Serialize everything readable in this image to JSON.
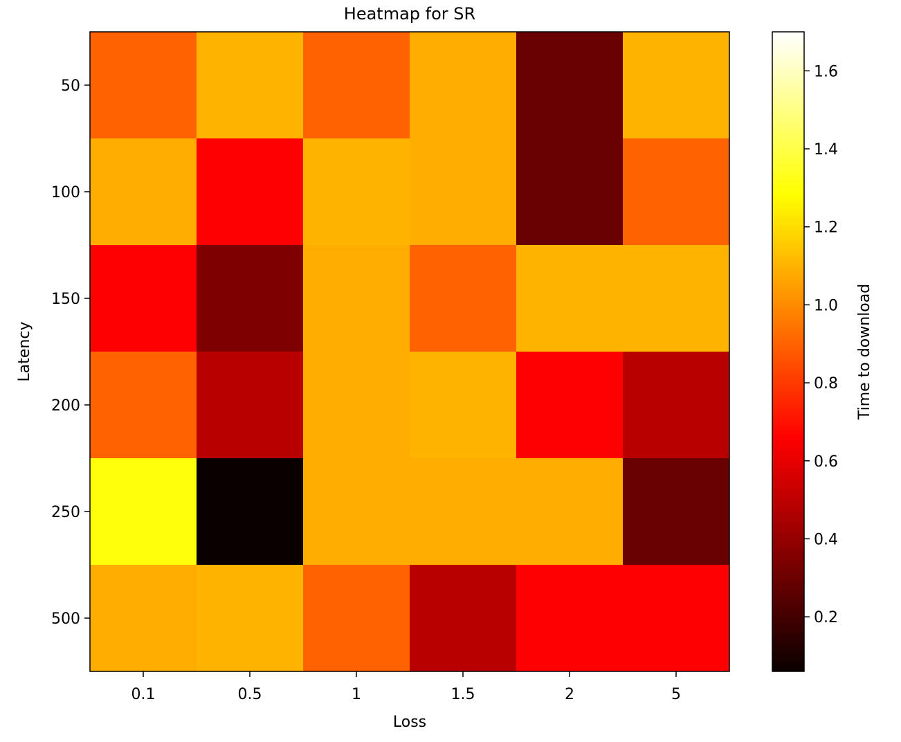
{
  "chart_data": {
    "type": "heatmap",
    "title": "Heatmap for SR",
    "xlabel": "Loss",
    "ylabel": "Latency",
    "x_categories": [
      "0.1",
      "0.5",
      "1",
      "1.5",
      "2",
      "5"
    ],
    "y_categories": [
      "50",
      "100",
      "150",
      "200",
      "250",
      "500"
    ],
    "values": [
      [
        0.9,
        1.1,
        0.9,
        1.08,
        0.28,
        1.1
      ],
      [
        1.08,
        0.65,
        1.1,
        1.08,
        0.28,
        0.9
      ],
      [
        0.65,
        0.33,
        1.08,
        0.9,
        1.1,
        1.1
      ],
      [
        0.9,
        0.47,
        1.08,
        1.1,
        0.65,
        0.47
      ],
      [
        1.3,
        0.06,
        1.08,
        1.08,
        1.08,
        0.28
      ],
      [
        1.08,
        1.1,
        0.9,
        0.47,
        0.65,
        0.65
      ]
    ],
    "colorbar": {
      "label": "Time to download",
      "min": 0.06,
      "max": 1.7,
      "ticks": [
        "0.2",
        "0.4",
        "0.6",
        "0.8",
        "1.0",
        "1.2",
        "1.4",
        "1.6"
      ],
      "colormap": "hot"
    }
  }
}
